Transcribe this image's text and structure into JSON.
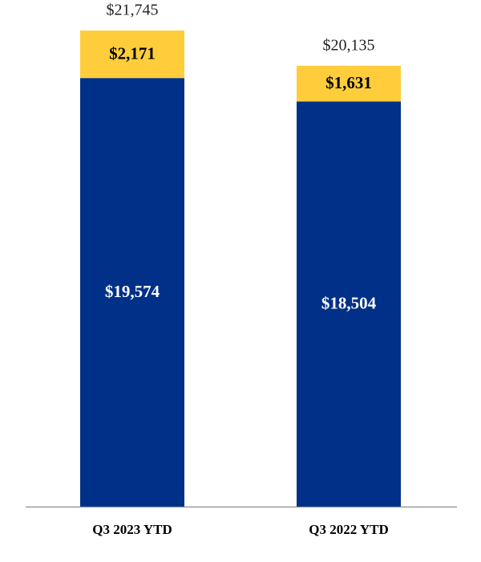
{
  "chart_data": {
    "type": "stacked_bar",
    "categories": [
      "Q3 2023 YTD",
      "Q3 2022 YTD"
    ],
    "series": [
      {
        "color": "#003087",
        "values": [
          19574,
          18504
        ],
        "value_labels": [
          "$19,574",
          "$18,504"
        ]
      },
      {
        "color": "#ffcd3c",
        "values": [
          2171,
          1631
        ],
        "value_labels": [
          "$2,171",
          "$1,631"
        ]
      }
    ],
    "totals": {
      "values": [
        21745,
        20135
      ],
      "value_labels": [
        "$21,745",
        "$20,135"
      ]
    }
  }
}
